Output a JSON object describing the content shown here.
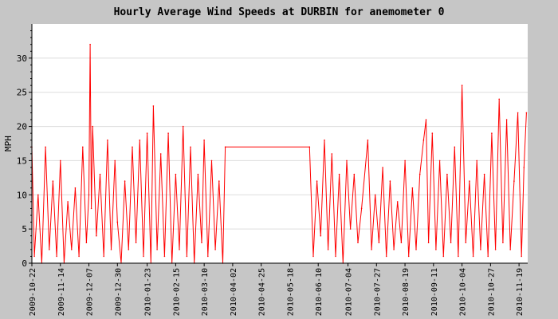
{
  "chart_data": {
    "type": "line",
    "title": "Hourly Average Wind Speeds at DURBIN for anemometer 0",
    "xlabel": "",
    "ylabel": "MPH",
    "xlim": [
      "2009-10-22",
      "2010-11-26"
    ],
    "ylim": [
      0,
      35
    ],
    "yticks": [
      0,
      5,
      10,
      15,
      20,
      25,
      30
    ],
    "xticks": [
      "2009-10-22",
      "2009-11-14",
      "2009-12-07",
      "2009-12-30",
      "2010-01-23",
      "2010-02-15",
      "2010-03-10",
      "2010-04-02",
      "2010-04-25",
      "2010-05-18",
      "2010-06-10",
      "2010-07-04",
      "2010-07-27",
      "2010-08-19",
      "2010-09-11",
      "2010-10-04",
      "2010-10-27",
      "2010-11-19"
    ],
    "grid": true,
    "legend": "none",
    "series": [
      {
        "color": "#ff0000",
        "x": [
          "2009-10-22",
          "2009-10-24",
          "2009-10-27",
          "2009-10-30",
          "2009-11-02",
          "2009-11-05",
          "2009-11-08",
          "2009-11-11",
          "2009-11-14",
          "2009-11-17",
          "2009-11-20",
          "2009-11-23",
          "2009-11-26",
          "2009-11-29",
          "2009-12-02",
          "2009-12-05",
          "2009-12-07",
          "2009-12-08",
          "2009-12-09",
          "2009-12-10",
          "2009-12-13",
          "2009-12-16",
          "2009-12-19",
          "2009-12-22",
          "2009-12-25",
          "2009-12-28",
          "2009-12-30",
          "2010-01-02",
          "2010-01-05",
          "2010-01-08",
          "2010-01-11",
          "2010-01-14",
          "2010-01-17",
          "2010-01-20",
          "2010-01-23",
          "2010-01-26",
          "2010-01-28",
          "2010-01-31",
          "2010-02-03",
          "2010-02-06",
          "2010-02-09",
          "2010-02-12",
          "2010-02-15",
          "2010-02-18",
          "2010-02-21",
          "2010-02-24",
          "2010-02-27",
          "2010-03-02",
          "2010-03-05",
          "2010-03-08",
          "2010-03-10",
          "2010-03-13",
          "2010-03-16",
          "2010-03-19",
          "2010-03-22",
          "2010-03-25",
          "2010-03-27",
          "2010-06-03",
          "2010-06-06",
          "2010-06-09",
          "2010-06-12",
          "2010-06-15",
          "2010-06-18",
          "2010-06-21",
          "2010-06-24",
          "2010-06-27",
          "2010-06-30",
          "2010-07-03",
          "2010-07-06",
          "2010-07-09",
          "2010-07-12",
          "2010-07-15",
          "2010-07-20",
          "2010-07-23",
          "2010-07-26",
          "2010-07-29",
          "2010-08-01",
          "2010-08-04",
          "2010-08-07",
          "2010-08-10",
          "2010-08-13",
          "2010-08-16",
          "2010-08-19",
          "2010-08-22",
          "2010-08-25",
          "2010-08-28",
          "2010-08-31",
          "2010-09-03",
          "2010-09-05",
          "2010-09-07",
          "2010-09-10",
          "2010-09-13",
          "2010-09-16",
          "2010-09-19",
          "2010-09-22",
          "2010-09-25",
          "2010-09-28",
          "2010-10-01",
          "2010-10-04",
          "2010-10-07",
          "2010-10-10",
          "2010-10-13",
          "2010-10-16",
          "2010-10-19",
          "2010-10-22",
          "2010-10-25",
          "2010-10-28",
          "2010-10-31",
          "2010-11-03",
          "2010-11-06",
          "2010-11-09",
          "2010-11-12",
          "2010-11-15",
          "2010-11-18",
          "2010-11-21",
          "2010-11-23",
          "2010-11-25"
        ],
        "y": [
          17,
          1,
          10,
          0,
          17,
          2,
          12,
          1,
          15,
          0,
          9,
          2,
          11,
          1,
          17,
          3,
          10,
          32,
          8,
          20,
          4,
          13,
          1,
          18,
          2,
          15,
          6,
          0,
          12,
          2,
          17,
          3,
          18,
          1,
          19,
          0,
          23,
          2,
          16,
          1,
          19,
          0,
          13,
          2,
          20,
          1,
          17,
          0,
          13,
          3,
          18,
          1,
          15,
          2,
          12,
          0,
          17,
          17,
          1,
          12,
          4,
          18,
          2,
          16,
          1,
          13,
          0,
          15,
          5,
          13,
          3,
          8,
          18,
          2,
          10,
          3,
          14,
          1,
          12,
          2,
          9,
          3,
          15,
          1,
          11,
          2,
          13,
          18,
          21,
          3,
          19,
          2,
          15,
          1,
          13,
          3,
          17,
          1,
          26,
          3,
          12,
          1,
          15,
          2,
          13,
          1,
          19,
          2,
          24,
          3,
          21,
          2,
          12,
          22,
          1,
          14,
          22
        ]
      }
    ]
  }
}
